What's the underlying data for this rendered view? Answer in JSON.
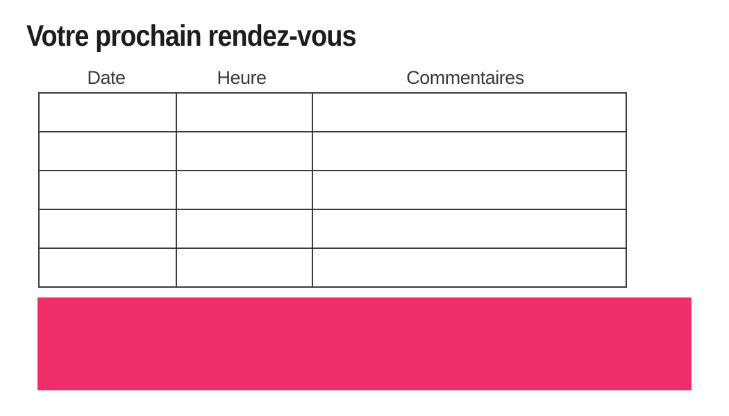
{
  "page": {
    "title": "Votre prochain rendez-vous"
  },
  "table": {
    "column_headers": [
      "Date",
      "Heure",
      "Commentaires"
    ],
    "rows": [
      [
        "",
        "",
        ""
      ],
      [
        "",
        "",
        ""
      ],
      [
        "",
        "",
        ""
      ],
      [
        "",
        "",
        ""
      ],
      [
        "",
        "",
        ""
      ]
    ]
  },
  "colors": {
    "banner_pink": "#ee2d69",
    "table_border": "#3b3a3c",
    "title_text": "#1c1b1d",
    "header_text": "#3a393b"
  }
}
